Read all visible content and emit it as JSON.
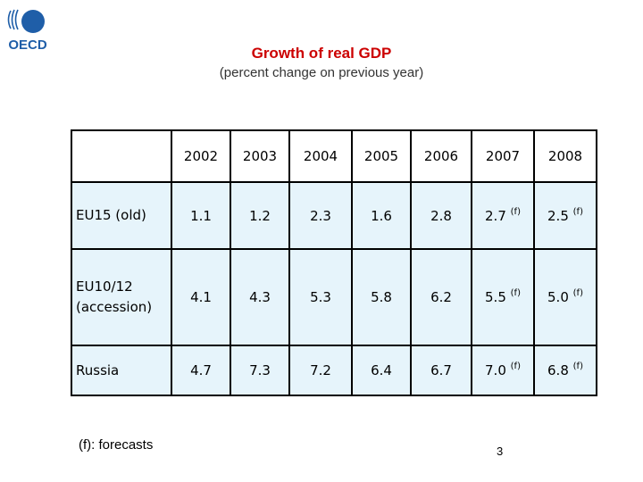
{
  "logo": {
    "text": "OECD",
    "ring_color": "#1f5ea8"
  },
  "title": "Growth of real GDP",
  "subtitle": "(percent change on previous year)",
  "table": {
    "years": [
      "2002",
      "2003",
      "2004",
      "2005",
      "2006",
      "2007",
      "2008"
    ],
    "rows": [
      {
        "label": "EU15 (old)",
        "values": [
          {
            "v": "1.1",
            "f": ""
          },
          {
            "v": "1.2",
            "f": ""
          },
          {
            "v": "2.3",
            "f": ""
          },
          {
            "v": "1.6",
            "f": ""
          },
          {
            "v": "2.8",
            "f": ""
          },
          {
            "v": "2.7",
            "f": "(f)"
          },
          {
            "v": "2.5",
            "f": "(f)"
          }
        ]
      },
      {
        "label": "EU10/12 (accession)",
        "values": [
          {
            "v": "4.1",
            "f": ""
          },
          {
            "v": "4.3",
            "f": ""
          },
          {
            "v": "5.3",
            "f": ""
          },
          {
            "v": "5.8",
            "f": ""
          },
          {
            "v": "6.2",
            "f": ""
          },
          {
            "v": "5.5",
            "f": "(f)"
          },
          {
            "v": "5.0",
            "f": "(f)"
          }
        ]
      },
      {
        "label": "Russia",
        "values": [
          {
            "v": "4.7",
            "f": ""
          },
          {
            "v": "7.3",
            "f": ""
          },
          {
            "v": "7.2",
            "f": ""
          },
          {
            "v": "6.4",
            "f": ""
          },
          {
            "v": "6.7",
            "f": ""
          },
          {
            "v": "7.0",
            "f": "(f)"
          },
          {
            "v": "6.8",
            "f": "(f)"
          }
        ]
      }
    ]
  },
  "footnote": "(f): forecasts",
  "page_number": "3"
}
